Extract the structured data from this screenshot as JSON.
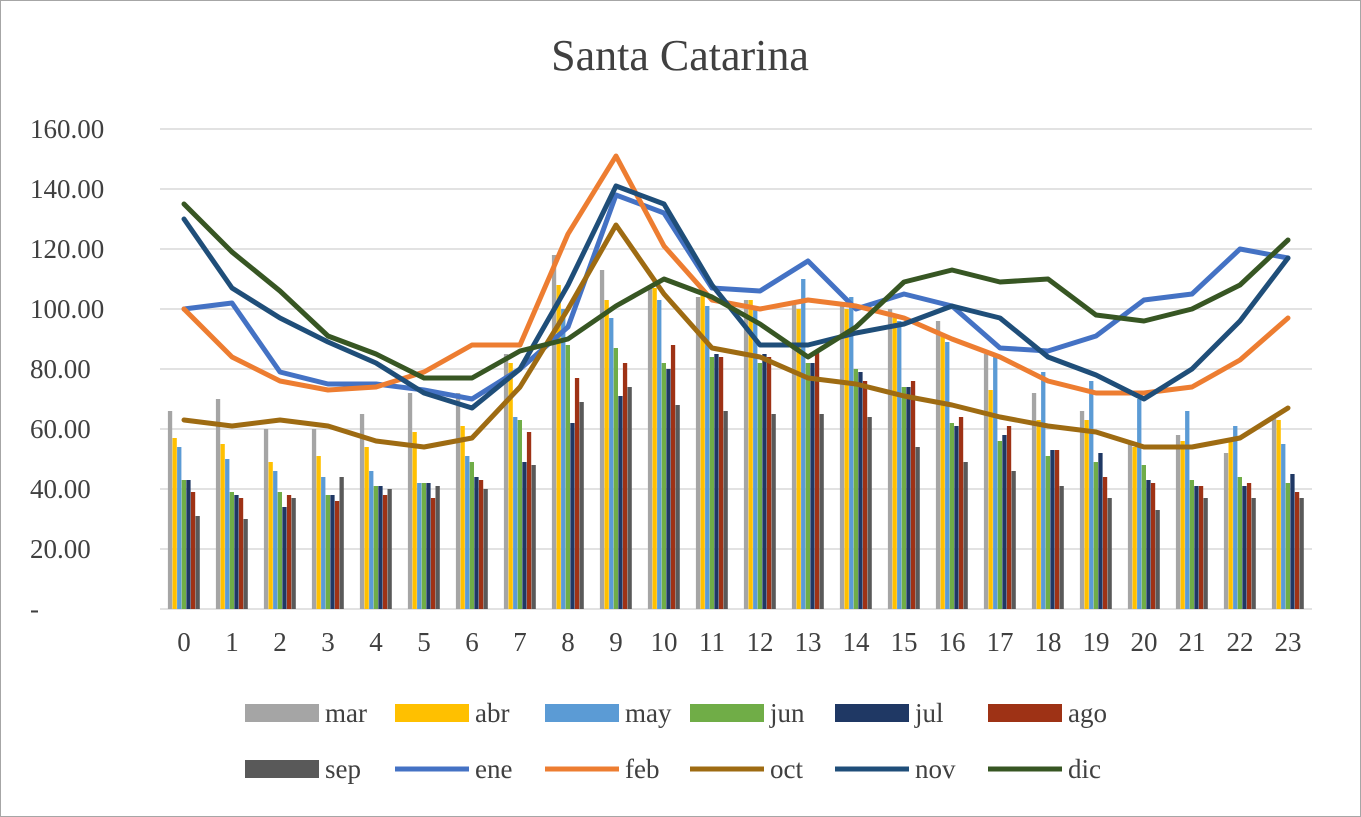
{
  "chart_data": {
    "type": "bar+line",
    "title": "Santa Catarina",
    "xlabel": "",
    "ylabel": "",
    "ylim": [
      0,
      160
    ],
    "y_ticks": [
      {
        "value": 0,
        "label": "-"
      },
      {
        "value": 20,
        "label": "20.00"
      },
      {
        "value": 40,
        "label": "40.00"
      },
      {
        "value": 60,
        "label": "60.00"
      },
      {
        "value": 80,
        "label": "80.00"
      },
      {
        "value": 100,
        "label": "100.00"
      },
      {
        "value": 120,
        "label": "120.00"
      },
      {
        "value": 140,
        "label": "140.00"
      },
      {
        "value": 160,
        "label": "160.00"
      }
    ],
    "grid": true,
    "legend_position": "bottom",
    "categories": [
      "0",
      "1",
      "2",
      "3",
      "4",
      "5",
      "6",
      "7",
      "8",
      "9",
      "10",
      "11",
      "12",
      "13",
      "14",
      "15",
      "16",
      "17",
      "18",
      "19",
      "20",
      "21",
      "22",
      "23"
    ],
    "bar_series": [
      {
        "name": "mar",
        "color": "#a5a5a5",
        "values": [
          66,
          70,
          60,
          60,
          65,
          72,
          72,
          85,
          118,
          113,
          108,
          104,
          103,
          102,
          101,
          100,
          96,
          85,
          72,
          66,
          56,
          58,
          52,
          64
        ]
      },
      {
        "name": "abr",
        "color": "#ffc000",
        "values": [
          57,
          55,
          49,
          51,
          54,
          59,
          61,
          82,
          108,
          103,
          107,
          105,
          103,
          100,
          100,
          97,
          91,
          73,
          63,
          63,
          54,
          56,
          56,
          63
        ]
      },
      {
        "name": "may",
        "color": "#5b9bd5",
        "values": [
          54,
          50,
          46,
          44,
          46,
          42,
          51,
          64,
          100,
          97,
          103,
          101,
          101,
          110,
          104,
          96,
          89,
          84,
          79,
          76,
          70,
          66,
          61,
          55
        ]
      },
      {
        "name": "jun",
        "color": "#70ad47",
        "values": [
          43,
          39,
          39,
          38,
          41,
          42,
          49,
          63,
          88,
          87,
          82,
          84,
          82,
          82,
          80,
          74,
          62,
          56,
          51,
          49,
          48,
          43,
          44,
          42
        ]
      },
      {
        "name": "jul",
        "color": "#1f3864",
        "values": [
          43,
          38,
          34,
          38,
          41,
          42,
          44,
          49,
          62,
          71,
          80,
          85,
          85,
          82,
          79,
          74,
          61,
          58,
          53,
          52,
          43,
          41,
          41,
          45
        ]
      },
      {
        "name": "ago",
        "color": "#9e3215",
        "values": [
          39,
          37,
          38,
          36,
          38,
          37,
          43,
          59,
          77,
          82,
          88,
          84,
          84,
          86,
          76,
          76,
          64,
          61,
          53,
          44,
          42,
          41,
          42,
          39
        ]
      },
      {
        "name": "sep",
        "color": "#595959",
        "values": [
          31,
          30,
          37,
          44,
          40,
          41,
          40,
          48,
          69,
          74,
          68,
          66,
          65,
          65,
          64,
          54,
          49,
          46,
          41,
          37,
          33,
          37,
          37,
          37
        ]
      }
    ],
    "line_series": [
      {
        "name": "ene",
        "color": "#4472c4",
        "values": [
          100,
          102,
          79,
          75,
          75,
          73,
          70,
          80,
          94,
          138,
          132,
          107,
          106,
          116,
          100,
          105,
          101,
          87,
          86,
          91,
          103,
          105,
          120,
          117
        ]
      },
      {
        "name": "feb",
        "color": "#ed7d31",
        "values": [
          100,
          84,
          76,
          73,
          74,
          79,
          88,
          88,
          125,
          151,
          121,
          103,
          100,
          103,
          101,
          97,
          90,
          84,
          76,
          72,
          72,
          74,
          83,
          97
        ]
      },
      {
        "name": "oct",
        "color": "#9e6b12",
        "values": [
          63,
          61,
          63,
          61,
          56,
          54,
          57,
          74,
          100,
          128,
          105,
          87,
          84,
          77,
          75,
          71,
          68,
          64,
          61,
          59,
          54,
          54,
          57,
          67
        ]
      },
      {
        "name": "nov",
        "color": "#1f4e79",
        "values": [
          130,
          107,
          97,
          89,
          82,
          72,
          67,
          80,
          108,
          141,
          135,
          108,
          88,
          88,
          92,
          95,
          101,
          97,
          84,
          78,
          70,
          80,
          96,
          117
        ]
      },
      {
        "name": "dic",
        "color": "#375623",
        "values": [
          135,
          119,
          106,
          91,
          85,
          77,
          77,
          86,
          90,
          101,
          110,
          104,
          95,
          84,
          94,
          109,
          113,
          109,
          110,
          98,
          96,
          100,
          108,
          123
        ]
      }
    ]
  },
  "legend_rows": [
    [
      "mar",
      "abr",
      "may",
      "jun",
      "jul",
      "ago"
    ],
    [
      "sep",
      "ene",
      "feb",
      "oct",
      "nov",
      "dic"
    ]
  ]
}
